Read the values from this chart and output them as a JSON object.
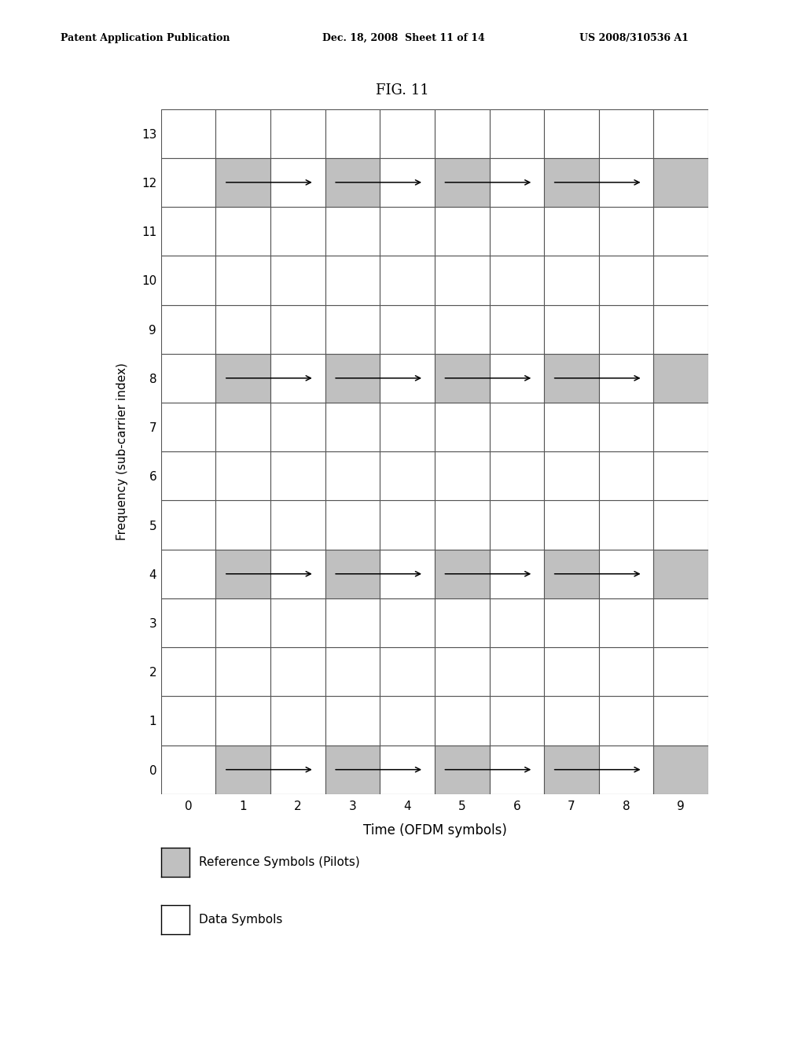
{
  "title": "FIG. 11",
  "header_left": "Patent Application Publication",
  "header_mid": "Dec. 18, 2008  Sheet 11 of 14",
  "header_right": "US 2008/310536 A1",
  "xlabel": "Time (OFDM symbols)",
  "ylabel": "Frequency (sub-carrier index)",
  "x_ticks": [
    0,
    1,
    2,
    3,
    4,
    5,
    6,
    7,
    8,
    9
  ],
  "y_ticks": [
    0,
    1,
    2,
    3,
    4,
    5,
    6,
    7,
    8,
    9,
    10,
    11,
    12,
    13
  ],
  "pilot_color": "#c0c0c0",
  "data_color": "#ffffff",
  "grid_color": "#555555",
  "background_color": "#ffffff",
  "legend_pilot_label": "Reference Symbols (Pilots)",
  "legend_data_label": "Data Symbols",
  "pilot_rows": [
    0,
    4,
    8,
    12
  ],
  "pilot_cols": [
    1,
    3,
    5,
    7,
    9
  ],
  "arrows": [
    {
      "y": 0,
      "x_start": 1.15,
      "x_end": 2.8
    },
    {
      "y": 0,
      "x_start": 3.15,
      "x_end": 4.8
    },
    {
      "y": 0,
      "x_start": 5.15,
      "x_end": 6.8
    },
    {
      "y": 0,
      "x_start": 7.15,
      "x_end": 8.8
    },
    {
      "y": 4,
      "x_start": 1.15,
      "x_end": 2.8
    },
    {
      "y": 4,
      "x_start": 3.15,
      "x_end": 4.8
    },
    {
      "y": 4,
      "x_start": 5.15,
      "x_end": 6.8
    },
    {
      "y": 4,
      "x_start": 7.15,
      "x_end": 8.8
    },
    {
      "y": 8,
      "x_start": 1.15,
      "x_end": 2.8
    },
    {
      "y": 8,
      "x_start": 3.15,
      "x_end": 4.8
    },
    {
      "y": 8,
      "x_start": 5.15,
      "x_end": 6.8
    },
    {
      "y": 8,
      "x_start": 7.15,
      "x_end": 8.8
    },
    {
      "y": 12,
      "x_start": 1.15,
      "x_end": 2.8
    },
    {
      "y": 12,
      "x_start": 3.15,
      "x_end": 4.8
    },
    {
      "y": 12,
      "x_start": 5.15,
      "x_end": 6.8
    },
    {
      "y": 12,
      "x_start": 7.15,
      "x_end": 8.8
    }
  ]
}
